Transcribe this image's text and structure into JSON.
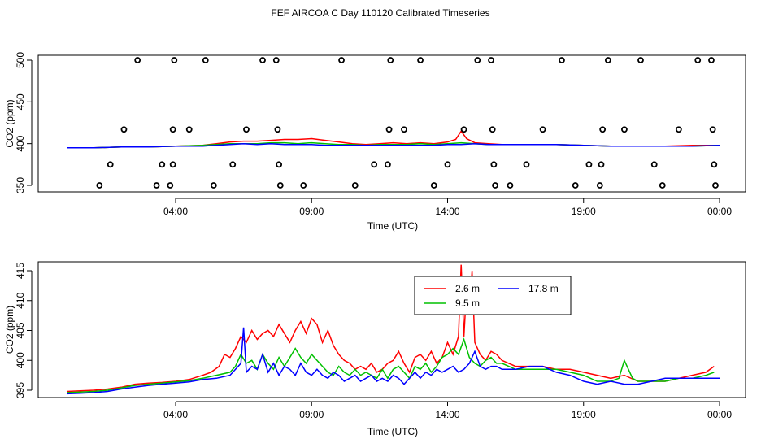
{
  "title": "FEF AIRCOA C  Day 110120  Calibrated Timeseries",
  "colors": {
    "red": "#ff0000",
    "green": "#00c000",
    "blue": "#0000ff",
    "axis": "#000000"
  },
  "chart_data": [
    {
      "type": "scatter",
      "xlabel": "Time (UTC)",
      "ylabel": "CO2 (ppm)",
      "xlim": [
        0,
        24
      ],
      "ylim": [
        350,
        500
      ],
      "xticks": [
        4,
        9,
        14,
        19,
        24
      ],
      "xtick_labels": [
        "04:00",
        "09:00",
        "14:00",
        "19:00",
        "00:00"
      ],
      "yticks": [
        350,
        400,
        450,
        500
      ],
      "ytick_labels": [
        "350",
        "400",
        "450",
        "500"
      ],
      "points": [
        [
          1.2,
          350
        ],
        [
          1.6,
          375
        ],
        [
          2.1,
          417
        ],
        [
          2.6,
          500
        ],
        [
          3.3,
          350
        ],
        [
          3.5,
          375
        ],
        [
          3.8,
          350
        ],
        [
          3.9,
          375
        ],
        [
          3.9,
          417
        ],
        [
          3.95,
          500
        ],
        [
          4.5,
          417
        ],
        [
          5.1,
          500
        ],
        [
          5.4,
          350
        ],
        [
          6.1,
          375
        ],
        [
          6.6,
          417
        ],
        [
          7.2,
          500
        ],
        [
          7.7,
          500
        ],
        [
          7.75,
          417
        ],
        [
          7.8,
          375
        ],
        [
          7.85,
          350
        ],
        [
          8.7,
          350
        ],
        [
          10.1,
          500
        ],
        [
          10.6,
          350
        ],
        [
          11.3,
          375
        ],
        [
          11.8,
          375
        ],
        [
          11.85,
          417
        ],
        [
          11.9,
          500
        ],
        [
          12.4,
          417
        ],
        [
          13.0,
          500
        ],
        [
          13.5,
          350
        ],
        [
          14.0,
          375
        ],
        [
          14.6,
          417
        ],
        [
          15.1,
          500
        ],
        [
          15.6,
          500
        ],
        [
          15.65,
          417
        ],
        [
          15.7,
          375
        ],
        [
          15.75,
          350
        ],
        [
          16.3,
          350
        ],
        [
          16.9,
          375
        ],
        [
          17.5,
          417
        ],
        [
          18.2,
          500
        ],
        [
          18.7,
          350
        ],
        [
          19.2,
          375
        ],
        [
          19.6,
          350
        ],
        [
          19.65,
          375
        ],
        [
          19.7,
          417
        ],
        [
          19.9,
          500
        ],
        [
          20.5,
          417
        ],
        [
          21.1,
          500
        ],
        [
          21.6,
          375
        ],
        [
          21.9,
          350
        ],
        [
          22.5,
          417
        ],
        [
          23.2,
          500
        ],
        [
          23.7,
          500
        ],
        [
          23.75,
          417
        ],
        [
          23.8,
          375
        ],
        [
          23.85,
          350
        ]
      ],
      "series": [
        {
          "color": "#ff0000",
          "x": [
            0,
            1,
            2,
            3,
            4,
            5,
            5.5,
            6,
            6.5,
            7,
            7.5,
            8,
            8.5,
            9,
            9.5,
            10,
            10.5,
            11,
            11.5,
            12,
            12.5,
            13,
            13.5,
            14,
            14.3,
            14.5,
            14.7,
            15,
            15.5,
            16,
            17,
            18,
            19,
            20,
            21,
            22,
            23,
            24
          ],
          "y": [
            395,
            395,
            396,
            396,
            397,
            398,
            400,
            402,
            403,
            403,
            404,
            405,
            405,
            406,
            404,
            402,
            400,
            399,
            400,
            401,
            400,
            401,
            400,
            402,
            405,
            415,
            406,
            401,
            400,
            399,
            399,
            399,
            398,
            397,
            397,
            397,
            398,
            398
          ]
        },
        {
          "color": "#00c000",
          "x": [
            0,
            1,
            2,
            3,
            4,
            5,
            5.5,
            6,
            6.5,
            7,
            7.5,
            8,
            8.5,
            9,
            9.5,
            10,
            10.5,
            11,
            11.5,
            12,
            12.5,
            13,
            13.5,
            14,
            14.5,
            15,
            15.5,
            16,
            17,
            18,
            19,
            20,
            21,
            22,
            23,
            24
          ],
          "y": [
            395,
            395,
            396,
            396,
            397,
            398,
            399,
            400,
            400,
            400,
            401,
            401,
            400,
            401,
            400,
            399,
            399,
            398,
            399,
            399,
            399,
            400,
            399,
            400,
            401,
            400,
            399,
            399,
            399,
            399,
            398,
            397,
            397,
            397,
            397,
            398
          ]
        },
        {
          "color": "#0000ff",
          "x": [
            0,
            1,
            2,
            3,
            4,
            5,
            5.5,
            6,
            6.5,
            7,
            7.5,
            8,
            8.5,
            9,
            9.5,
            10,
            10.5,
            11,
            11.5,
            12,
            12.5,
            13,
            13.5,
            14,
            14.5,
            15,
            15.5,
            16,
            17,
            18,
            19,
            20,
            21,
            22,
            23,
            24
          ],
          "y": [
            395,
            395,
            396,
            396,
            397,
            397,
            398,
            399,
            400,
            399,
            400,
            399,
            399,
            399,
            398,
            398,
            398,
            398,
            398,
            398,
            398,
            398,
            398,
            399,
            399,
            400,
            399,
            399,
            399,
            399,
            398,
            397,
            397,
            397,
            397,
            398
          ]
        }
      ]
    },
    {
      "type": "line",
      "xlabel": "Time (UTC)",
      "ylabel": "CO2 (ppm)",
      "xlim": [
        0,
        24
      ],
      "ylim": [
        394,
        416
      ],
      "xticks": [
        4,
        9,
        14,
        19,
        24
      ],
      "xtick_labels": [
        "04:00",
        "09:00",
        "14:00",
        "19:00",
        "00:00"
      ],
      "yticks": [
        395,
        400,
        405,
        410,
        415
      ],
      "ytick_labels": [
        "395",
        "400",
        "405",
        "410",
        "415"
      ],
      "legend": {
        "position": "top-right",
        "entries": [
          "2.6 m",
          "9.5 m",
          "17.8 m"
        ]
      },
      "series": [
        {
          "name": "2.6 m",
          "color": "#ff0000",
          "x": [
            0,
            0.5,
            1,
            1.5,
            2,
            2.5,
            3,
            3.5,
            4,
            4.5,
            5,
            5.3,
            5.6,
            5.8,
            6,
            6.2,
            6.4,
            6.6,
            6.8,
            7,
            7.2,
            7.4,
            7.6,
            7.8,
            8,
            8.2,
            8.4,
            8.6,
            8.8,
            9,
            9.2,
            9.4,
            9.6,
            9.8,
            10,
            10.2,
            10.4,
            10.6,
            10.8,
            11,
            11.2,
            11.4,
            11.6,
            11.8,
            12,
            12.2,
            12.4,
            12.6,
            12.8,
            13,
            13.2,
            13.4,
            13.6,
            13.8,
            14,
            14.2,
            14.4,
            14.5,
            14.6,
            14.7,
            14.8,
            14.9,
            15,
            15.2,
            15.4,
            15.6,
            15.8,
            16,
            16.5,
            17,
            17.5,
            18,
            18.5,
            19,
            19.5,
            20,
            20.5,
            21,
            21.5,
            22,
            22.5,
            23,
            23.5,
            23.8
          ],
          "y": [
            394.8,
            394.9,
            395.0,
            395.2,
            395.5,
            396.0,
            396.2,
            396.3,
            396.5,
            396.8,
            397.5,
            398.0,
            399.0,
            401.0,
            400.5,
            402.0,
            404.0,
            403.0,
            405.0,
            403.5,
            404.5,
            405.0,
            404.0,
            406.0,
            404.5,
            403.0,
            405.0,
            406.5,
            404.5,
            407.0,
            406.0,
            403.0,
            405.0,
            402.5,
            401.0,
            400.0,
            399.5,
            398.5,
            399.0,
            398.5,
            399.5,
            398.0,
            398.5,
            399.5,
            400.0,
            401.5,
            399.5,
            398.0,
            400.5,
            401.0,
            400.0,
            401.5,
            399.5,
            400.5,
            403.0,
            401.0,
            404.0,
            416.0,
            404.0,
            412.0,
            408.0,
            415.0,
            403.0,
            401.0,
            400.0,
            401.5,
            401.0,
            400.0,
            399.0,
            399.0,
            399.0,
            398.5,
            398.5,
            398.0,
            397.5,
            397.0,
            397.5,
            396.5,
            396.5,
            396.5,
            397.0,
            397.5,
            398.0,
            399.0
          ]
        },
        {
          "name": "9.5 m",
          "color": "#00c000",
          "x": [
            0,
            0.5,
            1,
            1.5,
            2,
            2.5,
            3,
            3.5,
            4,
            4.5,
            5,
            5.5,
            6,
            6.2,
            6.4,
            6.6,
            6.8,
            7,
            7.2,
            7.4,
            7.6,
            7.8,
            8,
            8.2,
            8.4,
            8.6,
            8.8,
            9,
            9.2,
            9.4,
            9.6,
            9.8,
            10,
            10.2,
            10.4,
            10.6,
            10.8,
            11,
            11.2,
            11.4,
            11.6,
            11.8,
            12,
            12.2,
            12.4,
            12.6,
            12.8,
            13,
            13.2,
            13.4,
            13.6,
            13.8,
            14,
            14.2,
            14.4,
            14.6,
            14.8,
            15,
            15.2,
            15.4,
            15.6,
            15.8,
            16,
            16.5,
            17,
            17.5,
            18,
            18.5,
            19,
            19.5,
            20,
            20.3,
            20.5,
            20.8,
            21,
            21.5,
            22,
            22.5,
            23,
            23.5,
            23.8
          ],
          "y": [
            394.6,
            394.7,
            394.8,
            395.0,
            395.4,
            395.8,
            396.0,
            396.2,
            396.4,
            396.6,
            397.0,
            397.5,
            398.0,
            399.0,
            401.0,
            399.5,
            400.0,
            398.5,
            401.0,
            399.5,
            398.5,
            400.5,
            399.0,
            400.5,
            402.0,
            400.5,
            399.5,
            401.0,
            400.0,
            399.0,
            398.0,
            397.5,
            399.0,
            398.0,
            397.5,
            398.5,
            397.5,
            398.0,
            397.5,
            397.0,
            398.5,
            397.0,
            398.5,
            399.0,
            398.0,
            397.0,
            399.0,
            398.5,
            399.5,
            398.0,
            399.0,
            400.5,
            401.0,
            402.0,
            401.0,
            403.5,
            400.5,
            399.5,
            399.0,
            400.0,
            400.5,
            399.5,
            399.5,
            398.5,
            398.5,
            398.5,
            398.5,
            398.0,
            397.5,
            396.5,
            396.5,
            397.0,
            400.0,
            397.0,
            396.5,
            396.5,
            396.5,
            397.0,
            397.0,
            397.5,
            398.0
          ]
        },
        {
          "name": "17.8 m",
          "color": "#0000ff",
          "x": [
            0,
            0.5,
            1,
            1.5,
            2,
            2.5,
            3,
            3.5,
            4,
            4.5,
            5,
            5.5,
            6,
            6.2,
            6.4,
            6.5,
            6.6,
            6.8,
            7,
            7.2,
            7.4,
            7.6,
            7.8,
            8,
            8.2,
            8.4,
            8.6,
            8.8,
            9,
            9.2,
            9.4,
            9.6,
            9.8,
            10,
            10.2,
            10.4,
            10.6,
            10.8,
            11,
            11.2,
            11.4,
            11.6,
            11.8,
            12,
            12.2,
            12.4,
            12.6,
            12.8,
            13,
            13.2,
            13.4,
            13.6,
            13.8,
            14,
            14.2,
            14.4,
            14.6,
            14.8,
            15,
            15.2,
            15.4,
            15.6,
            15.8,
            16,
            16.5,
            17,
            17.5,
            18,
            18.5,
            19,
            19.5,
            20,
            20.5,
            21,
            21.5,
            22,
            22.5,
            23,
            23.5,
            24
          ],
          "y": [
            394.4,
            394.5,
            394.6,
            394.8,
            395.2,
            395.5,
            395.8,
            396.0,
            396.2,
            396.4,
            396.8,
            397.0,
            397.5,
            398.5,
            399.5,
            405.5,
            398.0,
            399.0,
            398.5,
            401.0,
            398.0,
            399.5,
            397.5,
            399.0,
            398.5,
            397.5,
            399.5,
            398.0,
            397.5,
            398.5,
            397.5,
            397.0,
            398.0,
            397.5,
            396.5,
            397.0,
            397.5,
            396.5,
            397.0,
            397.5,
            396.5,
            397.0,
            396.5,
            397.5,
            397.0,
            396.0,
            397.0,
            398.0,
            397.0,
            398.0,
            397.5,
            398.5,
            398.0,
            398.5,
            399.0,
            398.0,
            398.5,
            399.5,
            401.5,
            399.0,
            398.5,
            399.0,
            399.0,
            398.5,
            398.5,
            399.0,
            399.0,
            398.0,
            397.5,
            396.5,
            396.0,
            396.5,
            396.0,
            396.0,
            396.5,
            397.0,
            397.0,
            397.0,
            397.0,
            397.0
          ]
        }
      ]
    }
  ]
}
